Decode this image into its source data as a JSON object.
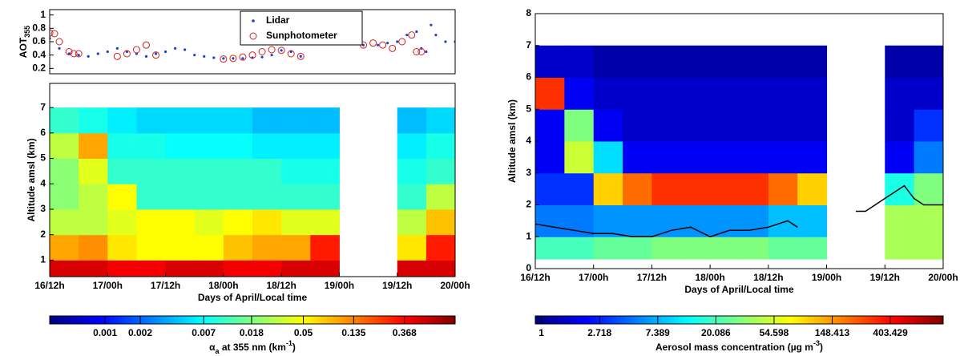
{
  "chart_data": [
    {
      "type": "scatter",
      "ylabel": [
        "AOT",
        "355"
      ],
      "xlim": [
        12,
        96
      ],
      "ylim": [
        0.12,
        1.08
      ],
      "yticks": [
        0.2,
        0.4,
        0.6,
        0.8,
        1
      ],
      "legend": "top-center",
      "series": [
        {
          "name": "Lidar",
          "color": "#1f3fd0",
          "marker": "dot",
          "x": [
            12,
            14,
            16,
            18,
            20,
            22,
            24,
            26,
            28,
            30,
            32,
            34,
            36,
            38,
            40,
            42,
            44,
            46,
            48,
            50,
            52,
            54,
            56,
            58,
            60,
            62,
            64,
            77,
            80,
            82,
            84,
            86,
            88,
            89,
            90,
            91,
            92,
            94,
            96
          ],
          "values": [
            0.65,
            0.5,
            0.42,
            0.4,
            0.38,
            0.42,
            0.45,
            0.5,
            0.45,
            0.42,
            0.38,
            0.42,
            0.45,
            0.5,
            0.48,
            0.4,
            0.38,
            0.36,
            0.35,
            0.35,
            0.35,
            0.36,
            0.37,
            0.4,
            0.47,
            0.45,
            0.38,
            0.55,
            0.55,
            0.58,
            0.6,
            0.7,
            0.75,
            0.5,
            0.45,
            0.85,
            0.7,
            0.6,
            0.6
          ]
        },
        {
          "name": "Sunphotometer",
          "color": "#d42020",
          "marker": "circle",
          "x": [
            12,
            13,
            14,
            16,
            17,
            18,
            26,
            28,
            30,
            32,
            34,
            48,
            50,
            52,
            54,
            56,
            58,
            60,
            62,
            64,
            77,
            79,
            81,
            83,
            85,
            87,
            88,
            89
          ],
          "values": [
            0.73,
            0.72,
            0.6,
            0.45,
            0.42,
            0.42,
            0.38,
            0.42,
            0.48,
            0.55,
            0.4,
            0.34,
            0.35,
            0.37,
            0.4,
            0.45,
            0.48,
            0.47,
            0.42,
            0.38,
            0.55,
            0.58,
            0.55,
            0.5,
            0.6,
            0.7,
            0.45,
            0.45
          ]
        }
      ]
    },
    {
      "type": "heatmap",
      "ylabel": "Altitude amsl (km)",
      "xlabel": "Days of April/Local time",
      "xlim": [
        12,
        96
      ],
      "ylim": [
        0.35,
        7.95
      ],
      "yticks": [
        1,
        2,
        3,
        4,
        5,
        6,
        7
      ],
      "xticks": [
        {
          "value": 12,
          "label": "16/12h"
        },
        {
          "value": 24,
          "label": "17/00h"
        },
        {
          "value": 36,
          "label": "17/12h"
        },
        {
          "value": 48,
          "label": "18/00h"
        },
        {
          "value": 60,
          "label": "18/12h"
        },
        {
          "value": 72,
          "label": "19/00h"
        },
        {
          "value": 84,
          "label": "19/12h"
        },
        {
          "value": 96,
          "label": "20/00h"
        }
      ],
      "x_edges": [
        12,
        18,
        24,
        30,
        36,
        42,
        48,
        54,
        60,
        66,
        72,
        78,
        84,
        90,
        96
      ],
      "y_edges": [
        0.35,
        1,
        2,
        3,
        4,
        5,
        6,
        7
      ],
      "z": [
        [
          0.5,
          0.5,
          0.4,
          0.4,
          0.5,
          0.5,
          0.4,
          0.4,
          0.5,
          0.5,
          null,
          null,
          0.5,
          0.5
        ],
        [
          0.1,
          0.12,
          0.06,
          0.05,
          0.05,
          0.05,
          0.08,
          0.1,
          0.1,
          0.3,
          null,
          null,
          0.06,
          0.3
        ],
        [
          0.03,
          0.03,
          0.04,
          0.05,
          0.05,
          0.04,
          0.05,
          0.06,
          0.04,
          0.04,
          null,
          null,
          0.03,
          0.08
        ],
        [
          0.02,
          0.03,
          0.05,
          0.01,
          0.01,
          0.01,
          0.01,
          0.01,
          0.01,
          0.01,
          null,
          null,
          0.01,
          0.03
        ],
        [
          0.02,
          0.04,
          0.01,
          0.01,
          0.01,
          0.01,
          0.01,
          0.01,
          0.008,
          0.008,
          null,
          null,
          0.008,
          0.01
        ],
        [
          0.03,
          0.1,
          0.008,
          0.008,
          0.007,
          0.007,
          0.007,
          0.006,
          0.006,
          0.006,
          null,
          null,
          0.006,
          0.008
        ],
        [
          0.01,
          0.008,
          0.006,
          0.005,
          0.005,
          0.005,
          0.005,
          0.004,
          0.004,
          0.004,
          null,
          null,
          0.004,
          0.005
        ]
      ],
      "colorbar": {
        "log": true,
        "lim": [
          0.000335,
          1
        ],
        "ticks": [
          0.001,
          0.002,
          0.007,
          0.018,
          0.05,
          0.135,
          0.368
        ],
        "label": [
          "α",
          "a",
          " at 355 nm (km",
          "-1",
          ")"
        ]
      }
    },
    {
      "type": "heatmap",
      "ylabel": "Altitude amsl (km)",
      "xlabel": "Days of April/Local time",
      "xlim": [
        12,
        96
      ],
      "ylim": [
        0,
        8
      ],
      "yticks": [
        0,
        1,
        2,
        3,
        4,
        5,
        6,
        7,
        8
      ],
      "xticks": [
        {
          "value": 12,
          "label": "16/12h"
        },
        {
          "value": 24,
          "label": "17/00h"
        },
        {
          "value": 36,
          "label": "17/12h"
        },
        {
          "value": 48,
          "label": "18/00h"
        },
        {
          "value": 60,
          "label": "18/12h"
        },
        {
          "value": 72,
          "label": "19/00h"
        },
        {
          "value": 84,
          "label": "19/12h"
        },
        {
          "value": 96,
          "label": "20/00h"
        }
      ],
      "x_edges": [
        12,
        18,
        24,
        30,
        36,
        42,
        48,
        54,
        60,
        66,
        72,
        78,
        84,
        90,
        96
      ],
      "y_edges": [
        0.3,
        1,
        2,
        3,
        4,
        5,
        6,
        7
      ],
      "z": [
        [
          20,
          20,
          25,
          25,
          30,
          30,
          30,
          30,
          25,
          25,
          null,
          null,
          40,
          40
        ],
        [
          5,
          5,
          6,
          6,
          6,
          6,
          6,
          6,
          8,
          8,
          null,
          null,
          40,
          40
        ],
        [
          3,
          3,
          100,
          200,
          300,
          300,
          300,
          300,
          200,
          100,
          null,
          null,
          15,
          30
        ],
        [
          2,
          50,
          10,
          2,
          2,
          2,
          2,
          2,
          2,
          2,
          null,
          null,
          2,
          5
        ],
        [
          2,
          30,
          2,
          1.5,
          1.5,
          1.5,
          1.5,
          1.5,
          1.5,
          1.5,
          null,
          null,
          1.5,
          3
        ],
        [
          300,
          2,
          1.5,
          1.5,
          1.5,
          1.5,
          1.5,
          1.5,
          1.5,
          1.5,
          null,
          null,
          1.5,
          1.5
        ],
        [
          1.5,
          1.5,
          1.2,
          1.2,
          1.2,
          1.2,
          1.2,
          1.2,
          1.2,
          1.2,
          null,
          null,
          1.2,
          1.2
        ]
      ],
      "line": {
        "color": "#000000",
        "x": [
          12,
          16,
          20,
          24,
          28,
          32,
          36,
          40,
          44,
          48,
          52,
          56,
          60,
          64,
          66,
          72,
          78,
          80,
          84,
          88,
          90,
          92,
          96
        ],
        "values": [
          1.4,
          1.3,
          1.2,
          1.1,
          1.1,
          1.0,
          1.0,
          1.2,
          1.3,
          1.0,
          1.2,
          1.2,
          1.3,
          1.5,
          1.3,
          null,
          1.8,
          1.8,
          2.2,
          2.6,
          2.2,
          2.0,
          2.0
        ]
      },
      "colorbar": {
        "log": true,
        "lim": [
          0.9,
          1000
        ],
        "ticks": [
          1,
          2.718,
          7.389,
          20.086,
          54.598,
          148.413,
          403.429
        ],
        "label": [
          "Aerosol mass concentration (µg m",
          "-3",
          ")"
        ]
      }
    }
  ]
}
